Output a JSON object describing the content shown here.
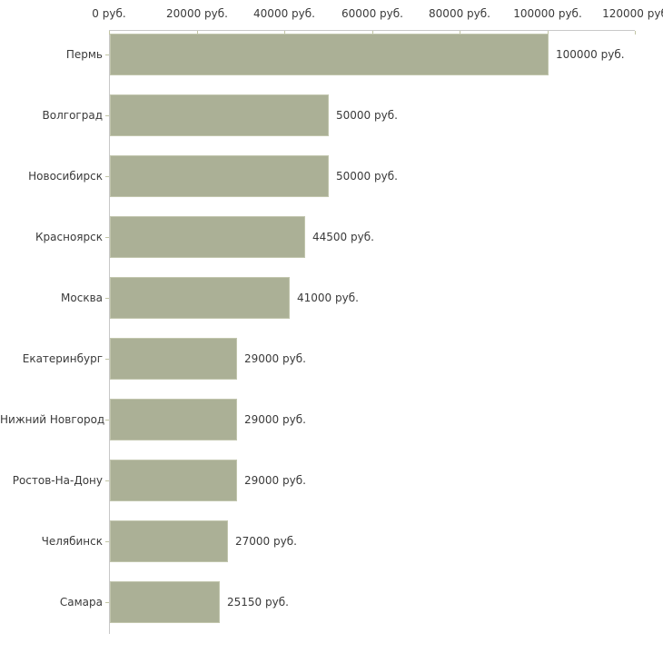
{
  "chart_data": {
    "type": "bar",
    "orientation": "horizontal",
    "title": "",
    "xlabel": "",
    "ylabel": "",
    "unit": "руб.",
    "categories": [
      "Пермь",
      "Волгоград",
      "Новосибирск",
      "Красноярск",
      "Москва",
      "Екатеринбург",
      "Нижний Новгород",
      "Ростов-На-Дону",
      "Челябинск",
      "Самара"
    ],
    "values": [
      100000,
      50000,
      50000,
      44500,
      41000,
      29000,
      29000,
      29000,
      27000,
      25150
    ],
    "value_labels": [
      "100000 руб.",
      "50000 руб.",
      "50000 руб.",
      "44500 руб.",
      "41000 руб.",
      "29000 руб.",
      "29000 руб.",
      "29000 руб.",
      "27000 руб.",
      "25150 руб."
    ],
    "x_axis": {
      "position": "top",
      "min": 0,
      "max": 120000,
      "ticks": [
        0,
        20000,
        40000,
        60000,
        80000,
        100000,
        120000
      ],
      "tick_labels": [
        "0 руб.",
        "20000 руб.",
        "40000 руб.",
        "60000 руб.",
        "80000 руб.",
        "100000 руб.",
        "120000 руб"
      ]
    },
    "legend": "none",
    "grid": "off",
    "colors": {
      "bar_fill": "#abb096",
      "bar_border": "#c2c6ae",
      "axis_line": "#c8c8c8",
      "tick_mark": "#c2c5a4",
      "text": "#3a3a3a",
      "background": "#ffffff"
    }
  }
}
